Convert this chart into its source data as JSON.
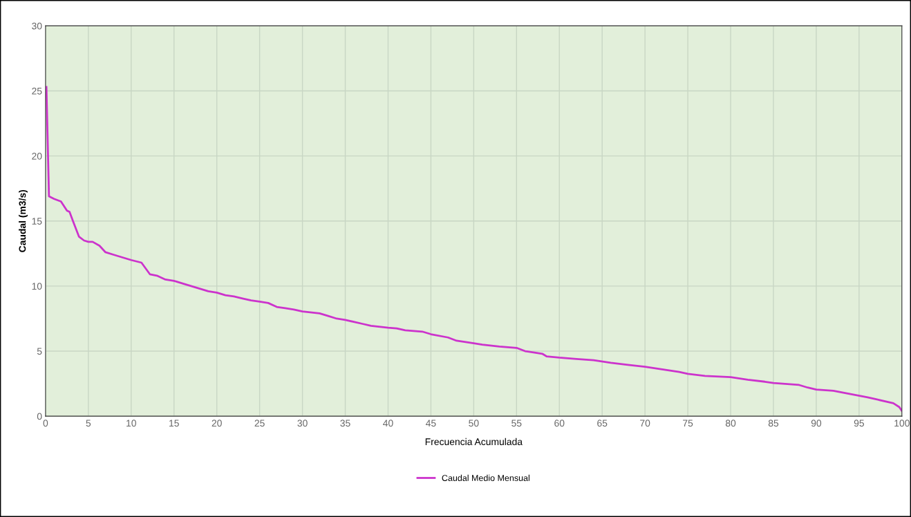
{
  "chart_data": {
    "type": "line",
    "xlabel": "Frecuencia Acumulada",
    "ylabel": "Caudal (m3/s)",
    "xlim": [
      0,
      100
    ],
    "xticks": [
      0,
      5,
      10,
      15,
      20,
      25,
      30,
      35,
      40,
      45,
      50,
      55,
      60,
      65,
      70,
      75,
      80,
      85,
      90,
      95,
      100
    ],
    "ylim": [
      0,
      30
    ],
    "yticks": [
      0,
      5,
      10,
      15,
      20,
      25,
      30
    ],
    "grid": true,
    "legend": "bottom",
    "marker": "none",
    "line_style": "solid",
    "series": [
      {
        "name": "Caudal Medio Mensual",
        "color": "#cc33cc",
        "x": [
          0.1,
          0.4,
          1,
          1.8,
          2.5,
          2.8,
          3.2,
          3.9,
          4.5,
          5,
          5.5,
          6.3,
          7,
          8,
          9,
          10,
          11.2,
          12.2,
          13,
          14,
          15,
          16,
          17,
          18,
          19,
          20,
          21,
          22,
          23,
          24,
          25,
          26,
          27,
          28,
          29,
          30,
          32,
          33,
          34,
          35,
          37,
          38,
          40,
          41,
          42,
          44,
          45,
          47,
          48,
          50,
          51,
          53,
          55,
          56,
          58,
          58.5,
          60,
          62,
          64,
          66,
          68,
          70,
          72,
          74,
          75,
          77,
          80,
          82,
          84,
          85,
          88,
          89,
          90,
          92,
          94,
          96,
          97,
          99,
          99.7,
          100
        ],
        "values": [
          25.3,
          16.9,
          16.7,
          16.5,
          15.8,
          15.7,
          15.0,
          13.8,
          13.5,
          13.4,
          13.4,
          13.1,
          12.6,
          12.4,
          12.2,
          12.0,
          11.8,
          10.9,
          10.8,
          10.5,
          10.4,
          10.2,
          10.0,
          9.8,
          9.6,
          9.5,
          9.3,
          9.2,
          9.05,
          8.9,
          8.8,
          8.7,
          8.4,
          8.3,
          8.2,
          8.05,
          7.9,
          7.7,
          7.5,
          7.4,
          7.1,
          6.95,
          6.8,
          6.75,
          6.6,
          6.5,
          6.3,
          6.05,
          5.8,
          5.6,
          5.5,
          5.35,
          5.25,
          5.0,
          4.8,
          4.6,
          4.5,
          4.4,
          4.3,
          4.1,
          3.95,
          3.8,
          3.6,
          3.4,
          3.25,
          3.1,
          3.0,
          2.8,
          2.65,
          2.55,
          2.4,
          2.2,
          2.05,
          1.95,
          1.7,
          1.45,
          1.3,
          1.0,
          0.7,
          0.4
        ]
      }
    ]
  }
}
